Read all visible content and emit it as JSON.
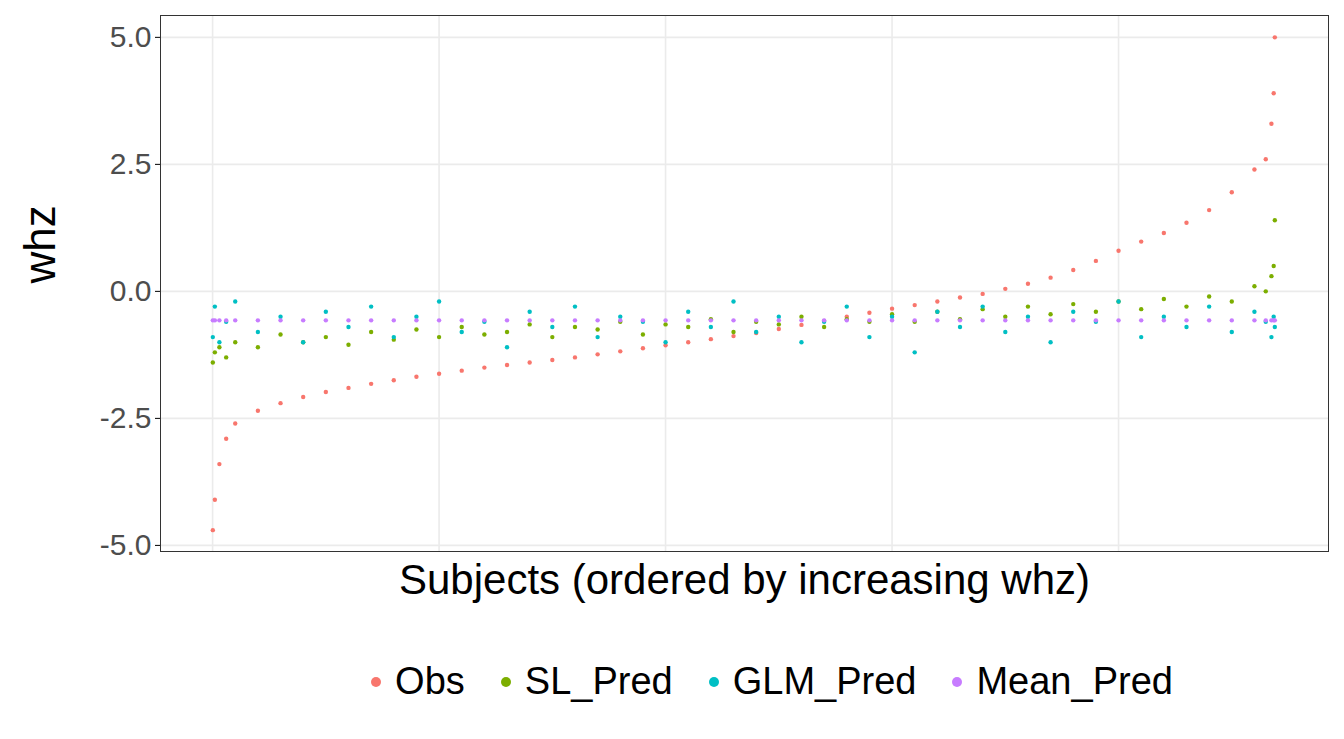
{
  "chart_data": {
    "type": "scatter",
    "x_label": "Subjects (ordered by increasing whz)",
    "y_label": "whz",
    "x": [
      1,
      10,
      30,
      60,
      100,
      200,
      300,
      400,
      500,
      600,
      700,
      800,
      900,
      1000,
      1100,
      1200,
      1300,
      1400,
      1500,
      1600,
      1700,
      1800,
      1900,
      2000,
      2100,
      2200,
      2300,
      2400,
      2500,
      2600,
      2700,
      2800,
      2900,
      3000,
      3100,
      3200,
      3300,
      3400,
      3500,
      3600,
      3700,
      3800,
      3900,
      4000,
      4100,
      4200,
      4300,
      4400,
      4500,
      4600,
      4650,
      4675,
      4685,
      4690
    ],
    "series": [
      {
        "name": "Obs",
        "color": "#F8766D",
        "values": [
          -4.7,
          -4.1,
          -3.4,
          -2.9,
          -2.6,
          -2.35,
          -2.2,
          -2.08,
          -1.98,
          -1.9,
          -1.82,
          -1.75,
          -1.68,
          -1.62,
          -1.56,
          -1.5,
          -1.45,
          -1.4,
          -1.35,
          -1.3,
          -1.24,
          -1.18,
          -1.12,
          -1.06,
          -1.0,
          -0.94,
          -0.88,
          -0.82,
          -0.74,
          -0.66,
          -0.58,
          -0.5,
          -0.42,
          -0.34,
          -0.27,
          -0.2,
          -0.12,
          -0.05,
          0.05,
          0.15,
          0.27,
          0.42,
          0.6,
          0.8,
          0.98,
          1.15,
          1.35,
          1.6,
          1.95,
          2.4,
          2.6,
          3.3,
          3.9,
          5.0
        ]
      },
      {
        "name": "SL_Pred",
        "color": "#7CAE00",
        "values": [
          -1.4,
          -1.2,
          -1.1,
          -1.3,
          -1.0,
          -1.1,
          -0.85,
          -1.0,
          -0.9,
          -1.05,
          -0.8,
          -0.95,
          -0.75,
          -0.9,
          -0.7,
          -0.85,
          -0.8,
          -0.65,
          -0.9,
          -0.7,
          -0.75,
          -0.6,
          -0.85,
          -0.65,
          -0.7,
          -0.55,
          -0.8,
          -0.6,
          -0.65,
          -0.5,
          -0.7,
          -0.55,
          -0.6,
          -0.45,
          -0.6,
          -0.4,
          -0.55,
          -0.35,
          -0.5,
          -0.3,
          -0.45,
          -0.25,
          -0.4,
          -0.2,
          -0.35,
          -0.15,
          -0.3,
          -0.1,
          -0.2,
          0.1,
          0.0,
          0.3,
          0.5,
          1.4
        ]
      },
      {
        "name": "GLM_Pred",
        "color": "#00BFC4",
        "values": [
          -0.9,
          -0.3,
          -1.0,
          -0.6,
          -0.2,
          -0.8,
          -0.5,
          -1.0,
          -0.4,
          -0.7,
          -0.3,
          -0.9,
          -0.5,
          -0.2,
          -0.8,
          -0.6,
          -1.1,
          -0.4,
          -0.7,
          -0.3,
          -0.9,
          -0.5,
          -0.6,
          -1.0,
          -0.4,
          -0.7,
          -0.2,
          -0.8,
          -0.5,
          -1.0,
          -0.6,
          -0.3,
          -0.9,
          -0.5,
          -1.2,
          -0.4,
          -0.7,
          -0.3,
          -0.8,
          -0.5,
          -1.0,
          -0.4,
          -0.6,
          -0.2,
          -0.9,
          -0.5,
          -0.7,
          -0.3,
          -0.8,
          -0.4,
          -0.6,
          -0.9,
          -0.5,
          -0.7
        ]
      },
      {
        "name": "Mean_Pred",
        "color": "#C77CFF",
        "values": [
          -0.57,
          -0.57,
          -0.57,
          -0.57,
          -0.57,
          -0.57,
          -0.57,
          -0.57,
          -0.57,
          -0.57,
          -0.57,
          -0.57,
          -0.57,
          -0.57,
          -0.57,
          -0.57,
          -0.57,
          -0.57,
          -0.57,
          -0.57,
          -0.57,
          -0.57,
          -0.57,
          -0.57,
          -0.57,
          -0.57,
          -0.57,
          -0.57,
          -0.57,
          -0.57,
          -0.57,
          -0.57,
          -0.57,
          -0.57,
          -0.57,
          -0.57,
          -0.57,
          -0.57,
          -0.57,
          -0.57,
          -0.57,
          -0.57,
          -0.57,
          -0.57,
          -0.57,
          -0.57,
          -0.57,
          -0.57,
          -0.57,
          -0.57,
          -0.57,
          -0.57,
          -0.57,
          -0.57
        ]
      }
    ],
    "xlim": [
      -230,
      4927
    ],
    "xticks": [
      0,
      1000,
      2000,
      3000,
      4000
    ],
    "ylim": [
      -5.12,
      5.43
    ],
    "yticks": [
      {
        "value": -5,
        "label": "-5.0"
      },
      -2.5,
      {
        "value": 0,
        "label": "0.0"
      },
      2.5,
      {
        "value": 5,
        "label": "5.0"
      }
    ],
    "grid": true,
    "tick_labels": "y",
    "legend": "bottom",
    "marker": "circle"
  }
}
